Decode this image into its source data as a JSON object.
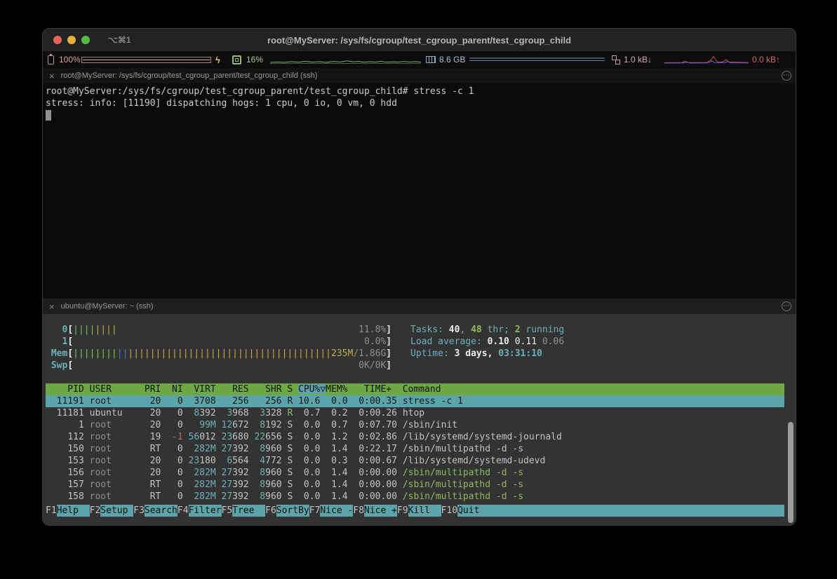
{
  "colors": {
    "text": "#c3c3c3",
    "white": "#ececec",
    "shadow": "#8f8f8f",
    "cyan": "#6cb2b4",
    "cyanBg": "#5ca4a9",
    "greenBg": "#6ea844",
    "green": "#8cbb5e",
    "yellow": "#b9b04a",
    "blue": "#5a6fc0",
    "red": "#c4654a",
    "selText": "#0e1a1c"
  },
  "titlebar": {
    "shortcut": "⌥⌘1",
    "title": "root@MyServer: /sys/fs/cgroup/test_cgroup_parent/test_cgroup_child"
  },
  "statusbar": {
    "battery_percent": "100%",
    "bolt": "ϟ",
    "cpu_percent": "16%",
    "memory": "8.6 GB",
    "net_down": "1.0 kB↓",
    "net_up": "0.0 kB↑"
  },
  "top_pane": {
    "tab_title": "root@MyServer: /sys/fs/cgroup/test_cgroup_parent/test_cgroup_child (ssh)",
    "lines": [
      "root@MyServer:/sys/fs/cgroup/test_cgroup_parent/test_cgroup_child# stress -c 1",
      "stress: info: [11190] dispatching hogs: 1 cpu, 0 io, 0 vm, 0 hdd"
    ]
  },
  "bottom_pane": {
    "tab_title": "ubuntu@MyServer: ~ (ssh)"
  },
  "htop": {
    "meters": [
      {
        "label": "  0",
        "bars": [
          {
            "n": 4,
            "c": "green"
          },
          {
            "n": 4,
            "c": "yellow"
          }
        ],
        "value": "11.8%"
      },
      {
        "label": "  1",
        "bars": [],
        "value": "0.0%"
      },
      {
        "label": "Mem",
        "bars": [
          {
            "n": 8,
            "c": "green"
          },
          {
            "n": 2,
            "c": "blue"
          },
          {
            "n": 37,
            "c": "yellow"
          }
        ],
        "value_segs": [
          {
            "t": "235M",
            "c": "yellow"
          },
          {
            "t": "/1.86G",
            "c": "shadow"
          }
        ]
      },
      {
        "label": "Swp",
        "bars": [],
        "value": "0K/0K"
      }
    ],
    "summary": [
      [
        {
          "t": "Tasks: ",
          "c": "cyan"
        },
        {
          "t": "40",
          "c": "white b"
        },
        {
          "t": ", ",
          "c": "cyan"
        },
        {
          "t": "48",
          "c": "green b"
        },
        {
          "t": " thr",
          "c": "cyan"
        },
        {
          "t": "; ",
          "c": "cyan"
        },
        {
          "t": "2",
          "c": "green b"
        },
        {
          "t": " running",
          "c": "cyan"
        }
      ],
      [
        {
          "t": "Load average: ",
          "c": "cyan"
        },
        {
          "t": "0.10 ",
          "c": "white b"
        },
        {
          "t": "0.11 ",
          "c": "white"
        },
        {
          "t": "0.06",
          "c": "shadow"
        }
      ],
      [
        {
          "t": "Uptime: ",
          "c": "cyan"
        },
        {
          "t": "3 days, ",
          "c": "white b"
        },
        {
          "t": "03:31:10",
          "c": "cyan b"
        }
      ]
    ],
    "table": {
      "columns": [
        "PID",
        "USER",
        "PRI",
        "NI",
        "VIRT",
        "RES",
        "SHR",
        "S",
        "CPU%",
        "MEM%",
        "TIME+",
        "Command"
      ],
      "sort_column": "CPU%",
      "sort_arrow": "▽",
      "rows": [
        {
          "pid": "11191",
          "user": "root",
          "pri": "20",
          "ni": "0",
          "virt": "3708",
          "res": "256",
          "shr": "256",
          "s": "R",
          "cpu": "10.6",
          "mem": "0.0",
          "time": "0:00.35",
          "cmd": "stress -c 1",
          "selected": true
        },
        {
          "pid": "11181",
          "user": "ubuntu",
          "pri": "20",
          "ni": "0",
          "virt": "8392",
          "res": "3968",
          "shr": "3328",
          "s": "R",
          "cpu": "0.7",
          "mem": "0.2",
          "time": "0:00.26",
          "cmd": "htop"
        },
        {
          "pid": "1",
          "user": "root",
          "pri": "20",
          "ni": "0",
          "virt": "99M",
          "res": "12672",
          "shr": "8192",
          "s": "S",
          "cpu": "0.0",
          "mem": "0.7",
          "time": "0:07.70",
          "cmd": "/sbin/init"
        },
        {
          "pid": "112",
          "user": "root",
          "pri": "19",
          "ni": "-1",
          "virt": "56012",
          "res": "23680",
          "shr": "22656",
          "s": "S",
          "cpu": "0.0",
          "mem": "1.2",
          "time": "0:02.86",
          "cmd": "/lib/systemd/systemd-journald"
        },
        {
          "pid": "150",
          "user": "root",
          "pri": "RT",
          "ni": "0",
          "virt": "282M",
          "res": "27392",
          "shr": "8960",
          "s": "S",
          "cpu": "0.0",
          "mem": "1.4",
          "time": "0:22.17",
          "cmd": "/sbin/multipathd -d -s"
        },
        {
          "pid": "153",
          "user": "root",
          "pri": "20",
          "ni": "0",
          "virt": "23180",
          "res": "6564",
          "shr": "4772",
          "s": "S",
          "cpu": "0.0",
          "mem": "0.3",
          "time": "0:00.67",
          "cmd": "/lib/systemd/systemd-udevd"
        },
        {
          "pid": "156",
          "user": "root",
          "pri": "20",
          "ni": "0",
          "virt": "282M",
          "res": "27392",
          "shr": "8960",
          "s": "S",
          "cpu": "0.0",
          "mem": "1.4",
          "time": "0:00.00",
          "cmd": "/sbin/multipathd -d -s",
          "cmd_green": true
        },
        {
          "pid": "157",
          "user": "root",
          "pri": "RT",
          "ni": "0",
          "virt": "282M",
          "res": "27392",
          "shr": "8960",
          "s": "S",
          "cpu": "0.0",
          "mem": "1.4",
          "time": "0:00.00",
          "cmd": "/sbin/multipathd -d -s",
          "cmd_green": true
        },
        {
          "pid": "158",
          "user": "root",
          "pri": "RT",
          "ni": "0",
          "virt": "282M",
          "res": "27392",
          "shr": "8960",
          "s": "S",
          "cpu": "0.0",
          "mem": "1.4",
          "time": "0:00.00",
          "cmd": "/sbin/multipathd -d -s",
          "cmd_green": true
        }
      ]
    },
    "fkeys": [
      {
        "key": "F1",
        "label": "Help"
      },
      {
        "key": "F2",
        "label": "Setup"
      },
      {
        "key": "F3",
        "label": "Search"
      },
      {
        "key": "F4",
        "label": "Filter"
      },
      {
        "key": "F5",
        "label": "Tree"
      },
      {
        "key": "F6",
        "label": "SortBy"
      },
      {
        "key": "F7",
        "label": "Nice -"
      },
      {
        "key": "F8",
        "label": "Nice +"
      },
      {
        "key": "F9",
        "label": "Kill"
      },
      {
        "key": "F10",
        "label": "Quit"
      }
    ]
  }
}
